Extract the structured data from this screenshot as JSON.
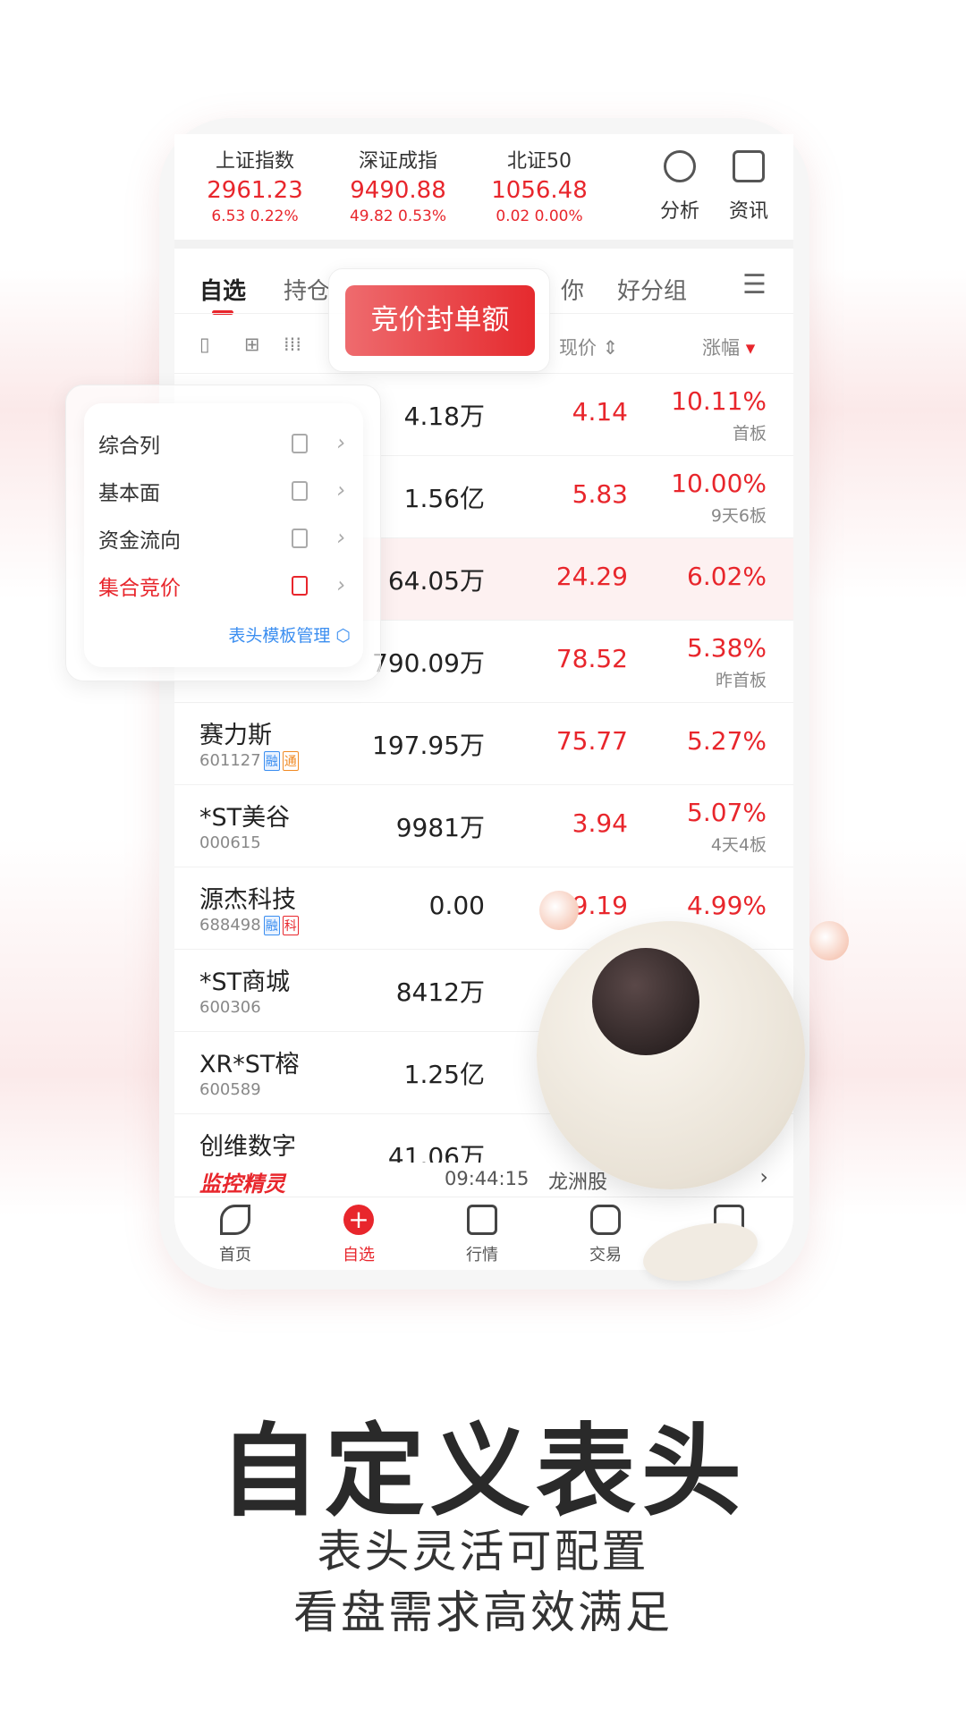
{
  "indices": [
    {
      "name": "上证指数",
      "value": "2961.23",
      "change": "6.53  0.22%"
    },
    {
      "name": "深证成指",
      "value": "9490.88",
      "change": "49.82  0.53%"
    },
    {
      "name": "北证50",
      "value": "1056.48",
      "change": "0.02  0.00%"
    }
  ],
  "tools": [
    {
      "label": "分析",
      "icon": "pie-chart-icon"
    },
    {
      "label": "资讯",
      "icon": "news-icon"
    }
  ],
  "tabs": [
    "自选",
    "持仓",
    "你",
    "好分组"
  ],
  "columns": {
    "price": "现价",
    "change": "涨幅"
  },
  "tooltip": "竞价封单额",
  "menu": {
    "items": [
      "综合列",
      "基本面",
      "资金流向",
      "集合竞价"
    ],
    "manage": "表头模板管理"
  },
  "rows": [
    {
      "name": "",
      "code": "",
      "vol": "4.18万",
      "price": "4.14",
      "pct": "10.11%",
      "tag": "首板"
    },
    {
      "name": "",
      "code": "",
      "vol": "1.56亿",
      "price": "5.83",
      "pct": "10.00%",
      "tag": "9天6板"
    },
    {
      "name": "",
      "code": "",
      "vol": "64.05万",
      "price": "24.29",
      "pct": "6.02%",
      "tag": ""
    },
    {
      "name": "",
      "code": "",
      "vol": "790.09万",
      "price": "78.52",
      "pct": "5.38%",
      "tag": "昨首板"
    },
    {
      "name": "赛力斯",
      "code": "601127",
      "b1": "融",
      "b2": "通",
      "vol": "197.95万",
      "price": "75.77",
      "pct": "5.27%",
      "tag": ""
    },
    {
      "name": "*ST美谷",
      "code": "000615",
      "vol": "9981万",
      "price": "3.94",
      "pct": "5.07%",
      "tag": "4天4板"
    },
    {
      "name": "源杰科技",
      "code": "688498",
      "b1": "融",
      "b2": "科",
      "vol": "0.00",
      "price": "9.19",
      "pct": "4.99%",
      "tag": ""
    },
    {
      "name": "*ST商城",
      "code": "600306",
      "vol": "8412万",
      "price": "",
      "pct": "",
      "tag": ""
    },
    {
      "name": "XR*ST榕",
      "code": "600589",
      "vol": "1.25亿",
      "price": "",
      "pct": "",
      "tag": ""
    },
    {
      "name": "创维数字",
      "code": "",
      "vol": "41.06万",
      "price": "",
      "pct": "",
      "tag": ""
    }
  ],
  "ticker": {
    "brand": "监控精灵",
    "time": "09:44:15",
    "text": "龙洲股"
  },
  "nav": [
    "首页",
    "自选",
    "行情",
    "交易",
    "资讯"
  ],
  "headline": "自定义表头",
  "subs": [
    "表头灵活可配置",
    "看盘需求高效满足"
  ],
  "colors": {
    "red": "#e8262c",
    "blue": "#3b8ef0"
  }
}
